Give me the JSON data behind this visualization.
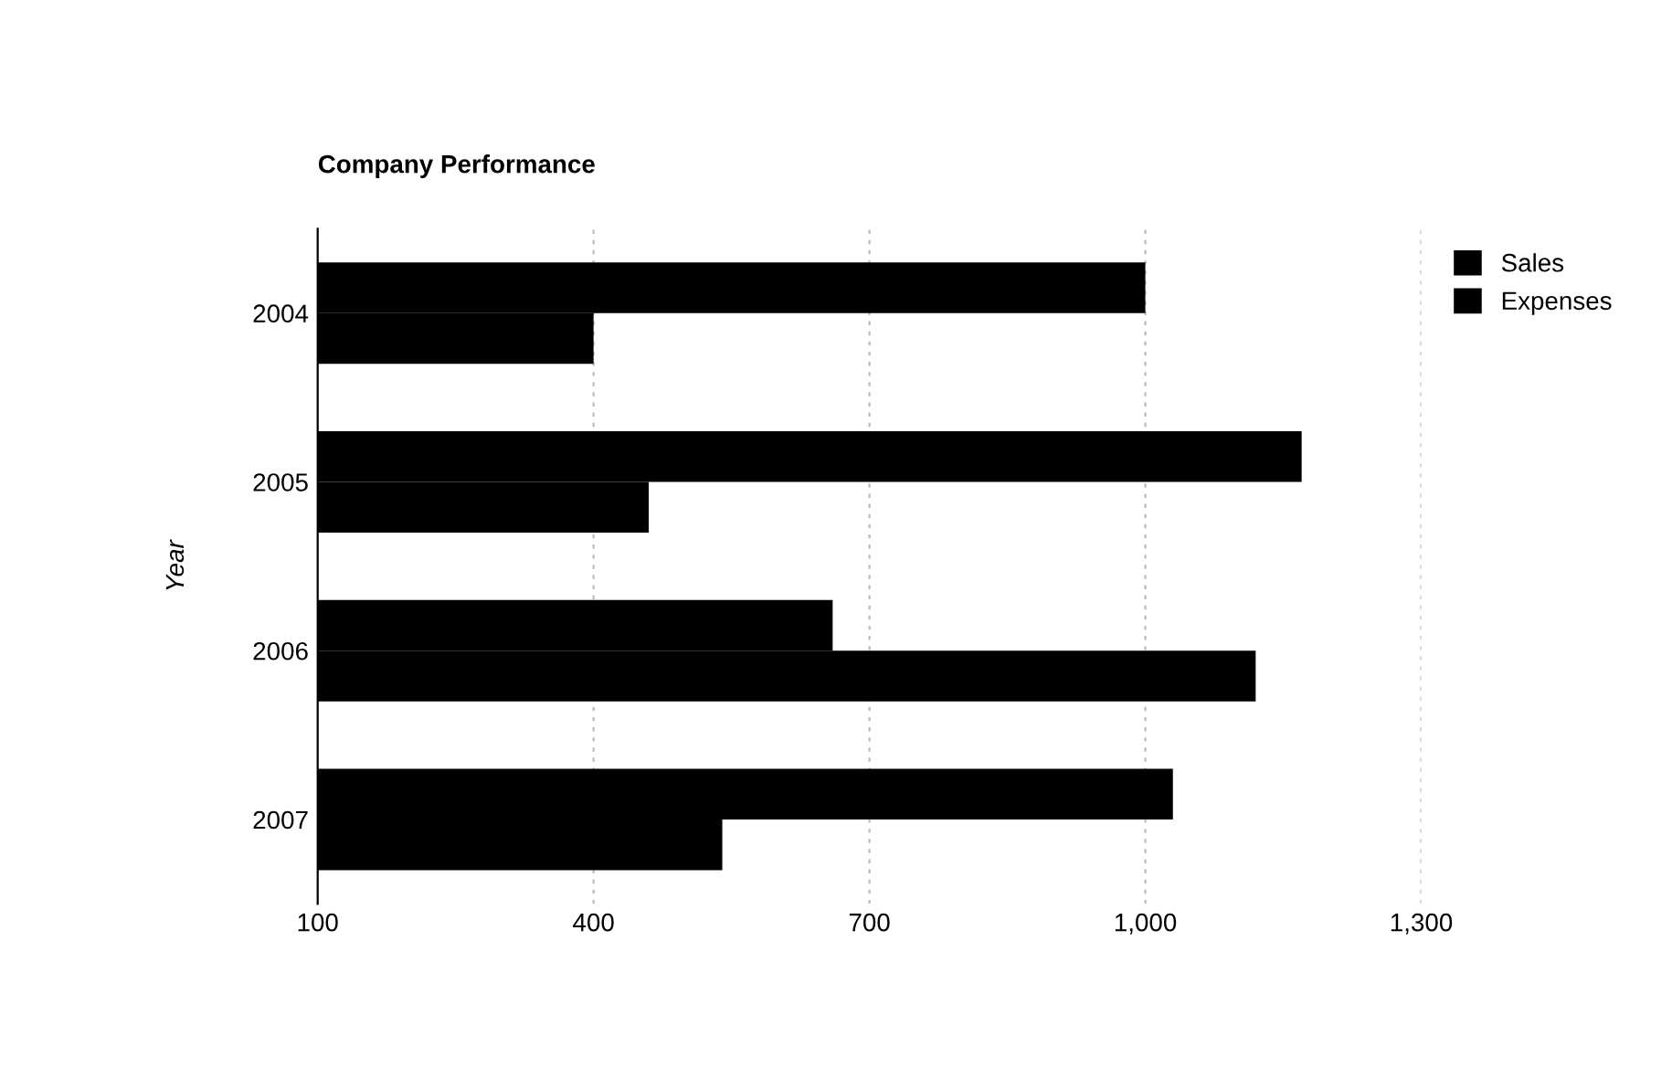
{
  "chart_data": {
    "type": "bar",
    "orientation": "horizontal",
    "title": "Company Performance",
    "ylabel": "Year",
    "categories": [
      "2004",
      "2005",
      "2006",
      "2007"
    ],
    "series": [
      {
        "name": "Sales",
        "color": "#000000",
        "values": [
          1000,
          1170,
          660,
          1030
        ]
      },
      {
        "name": "Expenses",
        "color": "#000000",
        "values": [
          400,
          460,
          1120,
          540
        ]
      }
    ],
    "xlim": [
      100,
      1300
    ],
    "xticks": [
      100,
      400,
      700,
      {
        "value": 1000,
        "label": "1,000"
      },
      {
        "value": 1300,
        "label": "1,300"
      }
    ],
    "grid": "x",
    "legend": "top right"
  }
}
